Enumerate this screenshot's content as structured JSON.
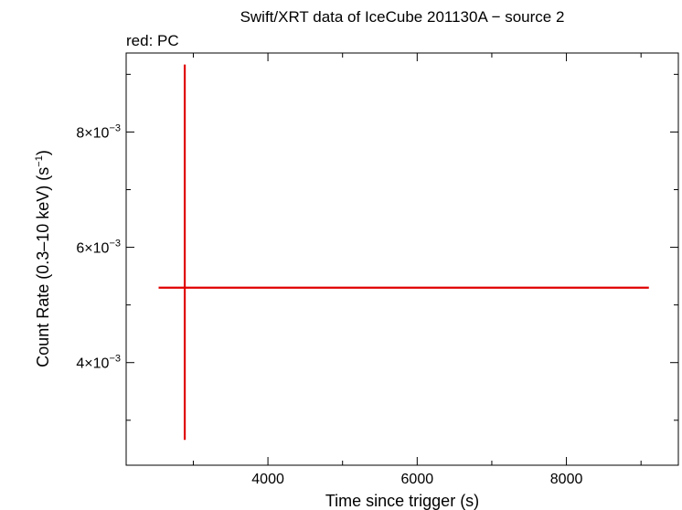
{
  "chart_data": {
    "type": "scatter",
    "title": "Swift/XRT data of IceCube 201130A − source 2",
    "subtitle": "red: PC",
    "xlabel": "Time since trigger (s)",
    "ylabel_parts": {
      "main": "Count Rate (0.3–10 keV) (s",
      "exp": "−1",
      "close": ")"
    },
    "xlim": [
      2100,
      9500
    ],
    "ylim": [
      0.00222,
      0.00937
    ],
    "x_ticks": [
      {
        "value": 4000,
        "label": "4000"
      },
      {
        "value": 6000,
        "label": "6000"
      },
      {
        "value": 8000,
        "label": "8000"
      }
    ],
    "x_minor_step": 1000,
    "y_ticks": [
      {
        "value": 0.004,
        "mantissa": "4",
        "exp": "−3"
      },
      {
        "value": 0.006,
        "mantissa": "6",
        "exp": "−3"
      },
      {
        "value": 0.008,
        "mantissa": "8",
        "exp": "−3"
      }
    ],
    "y_minor_step": 0.001,
    "series": [
      {
        "name": "PC",
        "color": "#e00000",
        "points": [
          {
            "x": 2885,
            "xerr_low": 350,
            "xerr_high": 6220,
            "y": 0.0053,
            "yerr_low": 0.00264,
            "yerr_high": 0.00387
          }
        ]
      }
    ]
  }
}
